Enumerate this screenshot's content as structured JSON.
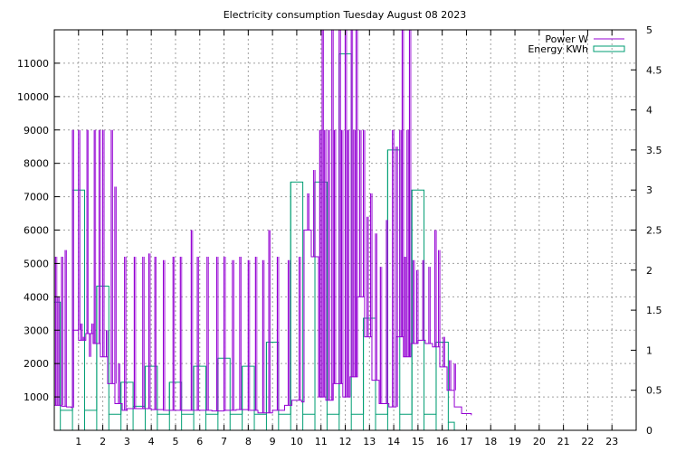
{
  "chart_data": {
    "type": "line",
    "title": "Electricity consumption Tuesday August 08 2023",
    "xlabel": "",
    "ylabel": "",
    "y2label": "",
    "xlim": [
      0,
      24
    ],
    "ylim": [
      0,
      12000
    ],
    "y2lim": [
      0,
      5
    ],
    "x_ticks": [
      1,
      2,
      3,
      4,
      5,
      6,
      7,
      8,
      9,
      10,
      11,
      12,
      13,
      14,
      15,
      16,
      17,
      18,
      19,
      20,
      21,
      22,
      23
    ],
    "y_ticks": [
      1000,
      2000,
      3000,
      4000,
      5000,
      6000,
      7000,
      8000,
      9000,
      10000,
      11000
    ],
    "y2_ticks": [
      "0",
      "0.5",
      "1",
      "1.5",
      "2",
      "2.5",
      "3",
      "3.5",
      "4",
      "4.5",
      "5"
    ],
    "grid": true,
    "legend_position": "top-right",
    "colors": {
      "power": "#9400d3",
      "energy": "#009e73"
    },
    "series": [
      {
        "name": "Power W",
        "axis": "y",
        "style": "line",
        "baseline": [
          [
            0,
            750
          ],
          [
            0.3,
            720
          ],
          [
            0.5,
            700
          ],
          [
            0.7,
            680
          ],
          [
            0.75,
            3000
          ],
          [
            1,
            2700
          ],
          [
            1.3,
            2900
          ],
          [
            1.6,
            2600
          ],
          [
            1.9,
            2200
          ],
          [
            2.2,
            1400
          ],
          [
            2.5,
            800
          ],
          [
            2.8,
            600
          ],
          [
            3,
            650
          ],
          [
            3.5,
            650
          ],
          [
            4,
            620
          ],
          [
            4.5,
            600
          ],
          [
            5,
            600
          ],
          [
            5.5,
            600
          ],
          [
            6,
            600
          ],
          [
            6.5,
            580
          ],
          [
            7,
            600
          ],
          [
            7.5,
            620
          ],
          [
            8,
            600
          ],
          [
            8.4,
            520
          ],
          [
            9,
            600
          ],
          [
            9.5,
            750
          ],
          [
            9.8,
            900
          ],
          [
            10,
            900
          ],
          [
            10.2,
            850
          ],
          [
            10.3,
            6000
          ],
          [
            10.6,
            5200
          ],
          [
            10.9,
            1000
          ],
          [
            11.2,
            900
          ],
          [
            11.5,
            1400
          ],
          [
            11.9,
            1000
          ],
          [
            12.2,
            1600
          ],
          [
            12.5,
            4000
          ],
          [
            12.8,
            2800
          ],
          [
            13.1,
            1500
          ],
          [
            13.4,
            800
          ],
          [
            13.8,
            700
          ],
          [
            14.1,
            2800
          ],
          [
            14.4,
            2200
          ],
          [
            14.7,
            2600
          ],
          [
            15,
            2700
          ],
          [
            15.3,
            2600
          ],
          [
            15.6,
            2500
          ],
          [
            15.9,
            1900
          ],
          [
            16.2,
            1200
          ],
          [
            16.5,
            700
          ],
          [
            16.8,
            500
          ],
          [
            17.2,
            450
          ]
        ],
        "spikes": [
          [
            0.05,
            5200
          ],
          [
            0.15,
            4000
          ],
          [
            0.3,
            5200
          ],
          [
            0.45,
            5400
          ],
          [
            0.75,
            9000
          ],
          [
            0.85,
            3000
          ],
          [
            1.0,
            9000
          ],
          [
            1.1,
            3200
          ],
          [
            1.2,
            2800
          ],
          [
            1.35,
            9000
          ],
          [
            1.45,
            2200
          ],
          [
            1.55,
            3200
          ],
          [
            1.65,
            9000
          ],
          [
            1.85,
            9000
          ],
          [
            2.0,
            9000
          ],
          [
            2.15,
            3000
          ],
          [
            2.35,
            9000
          ],
          [
            2.5,
            7300
          ],
          [
            2.65,
            2000
          ],
          [
            2.9,
            5200
          ],
          [
            3.3,
            5200
          ],
          [
            3.65,
            5200
          ],
          [
            3.9,
            5300
          ],
          [
            4.15,
            5200
          ],
          [
            4.5,
            5100
          ],
          [
            4.9,
            5200
          ],
          [
            5.2,
            5200
          ],
          [
            5.65,
            6000
          ],
          [
            5.9,
            5200
          ],
          [
            6.3,
            5200
          ],
          [
            6.7,
            5200
          ],
          [
            7.0,
            5200
          ],
          [
            7.35,
            5100
          ],
          [
            7.65,
            5200
          ],
          [
            8.0,
            5100
          ],
          [
            8.3,
            5200
          ],
          [
            8.6,
            5100
          ],
          [
            8.85,
            6000
          ],
          [
            9.2,
            5200
          ],
          [
            9.65,
            5100
          ],
          [
            10.1,
            5200
          ],
          [
            10.45,
            7100
          ],
          [
            10.7,
            7800
          ],
          [
            10.95,
            9000
          ],
          [
            11.05,
            12000
          ],
          [
            11.15,
            9000
          ],
          [
            11.3,
            9000
          ],
          [
            11.45,
            12000
          ],
          [
            11.55,
            9000
          ],
          [
            11.75,
            12000
          ],
          [
            11.85,
            9000
          ],
          [
            12.0,
            12000
          ],
          [
            12.1,
            9000
          ],
          [
            12.25,
            12000
          ],
          [
            12.35,
            9000
          ],
          [
            12.45,
            12000
          ],
          [
            12.6,
            9000
          ],
          [
            12.75,
            9000
          ],
          [
            12.9,
            6400
          ],
          [
            13.05,
            7100
          ],
          [
            13.25,
            5900
          ],
          [
            13.45,
            4900
          ],
          [
            13.7,
            6300
          ],
          [
            13.95,
            9000
          ],
          [
            14.1,
            8500
          ],
          [
            14.25,
            9000
          ],
          [
            14.35,
            12000
          ],
          [
            14.45,
            5200
          ],
          [
            14.55,
            9000
          ],
          [
            14.65,
            12000
          ],
          [
            14.8,
            5100
          ],
          [
            14.95,
            4800
          ],
          [
            15.2,
            5100
          ],
          [
            15.45,
            4900
          ],
          [
            15.7,
            6000
          ],
          [
            15.85,
            5400
          ],
          [
            16.05,
            2800
          ],
          [
            16.3,
            2100
          ],
          [
            16.5,
            2000
          ]
        ]
      },
      {
        "name": "Energy KWh",
        "axis": "y2",
        "style": "steps",
        "x": [
          0,
          0.25,
          0.75,
          1.25,
          1.75,
          2.25,
          2.75,
          3.25,
          3.75,
          4.25,
          4.75,
          5.25,
          5.75,
          6.25,
          6.75,
          7.25,
          7.75,
          8.25,
          8.75,
          9.25,
          9.75,
          10.25,
          10.75,
          11.25,
          11.75,
          12.25,
          12.75,
          13.25,
          13.75,
          14.25,
          14.75,
          15.25,
          15.75,
          16.25
        ],
        "values": [
          1.6,
          0.25,
          3.0,
          0.25,
          1.8,
          0.2,
          0.6,
          0.3,
          0.8,
          0.2,
          0.6,
          0.2,
          0.8,
          0.2,
          0.9,
          0.2,
          0.8,
          0.2,
          1.1,
          0.2,
          3.1,
          0.2,
          3.1,
          0.2,
          4.7,
          0.2,
          1.4,
          0.2,
          3.5,
          0.2,
          3.0,
          0.2,
          1.1,
          0.1
        ]
      }
    ]
  }
}
